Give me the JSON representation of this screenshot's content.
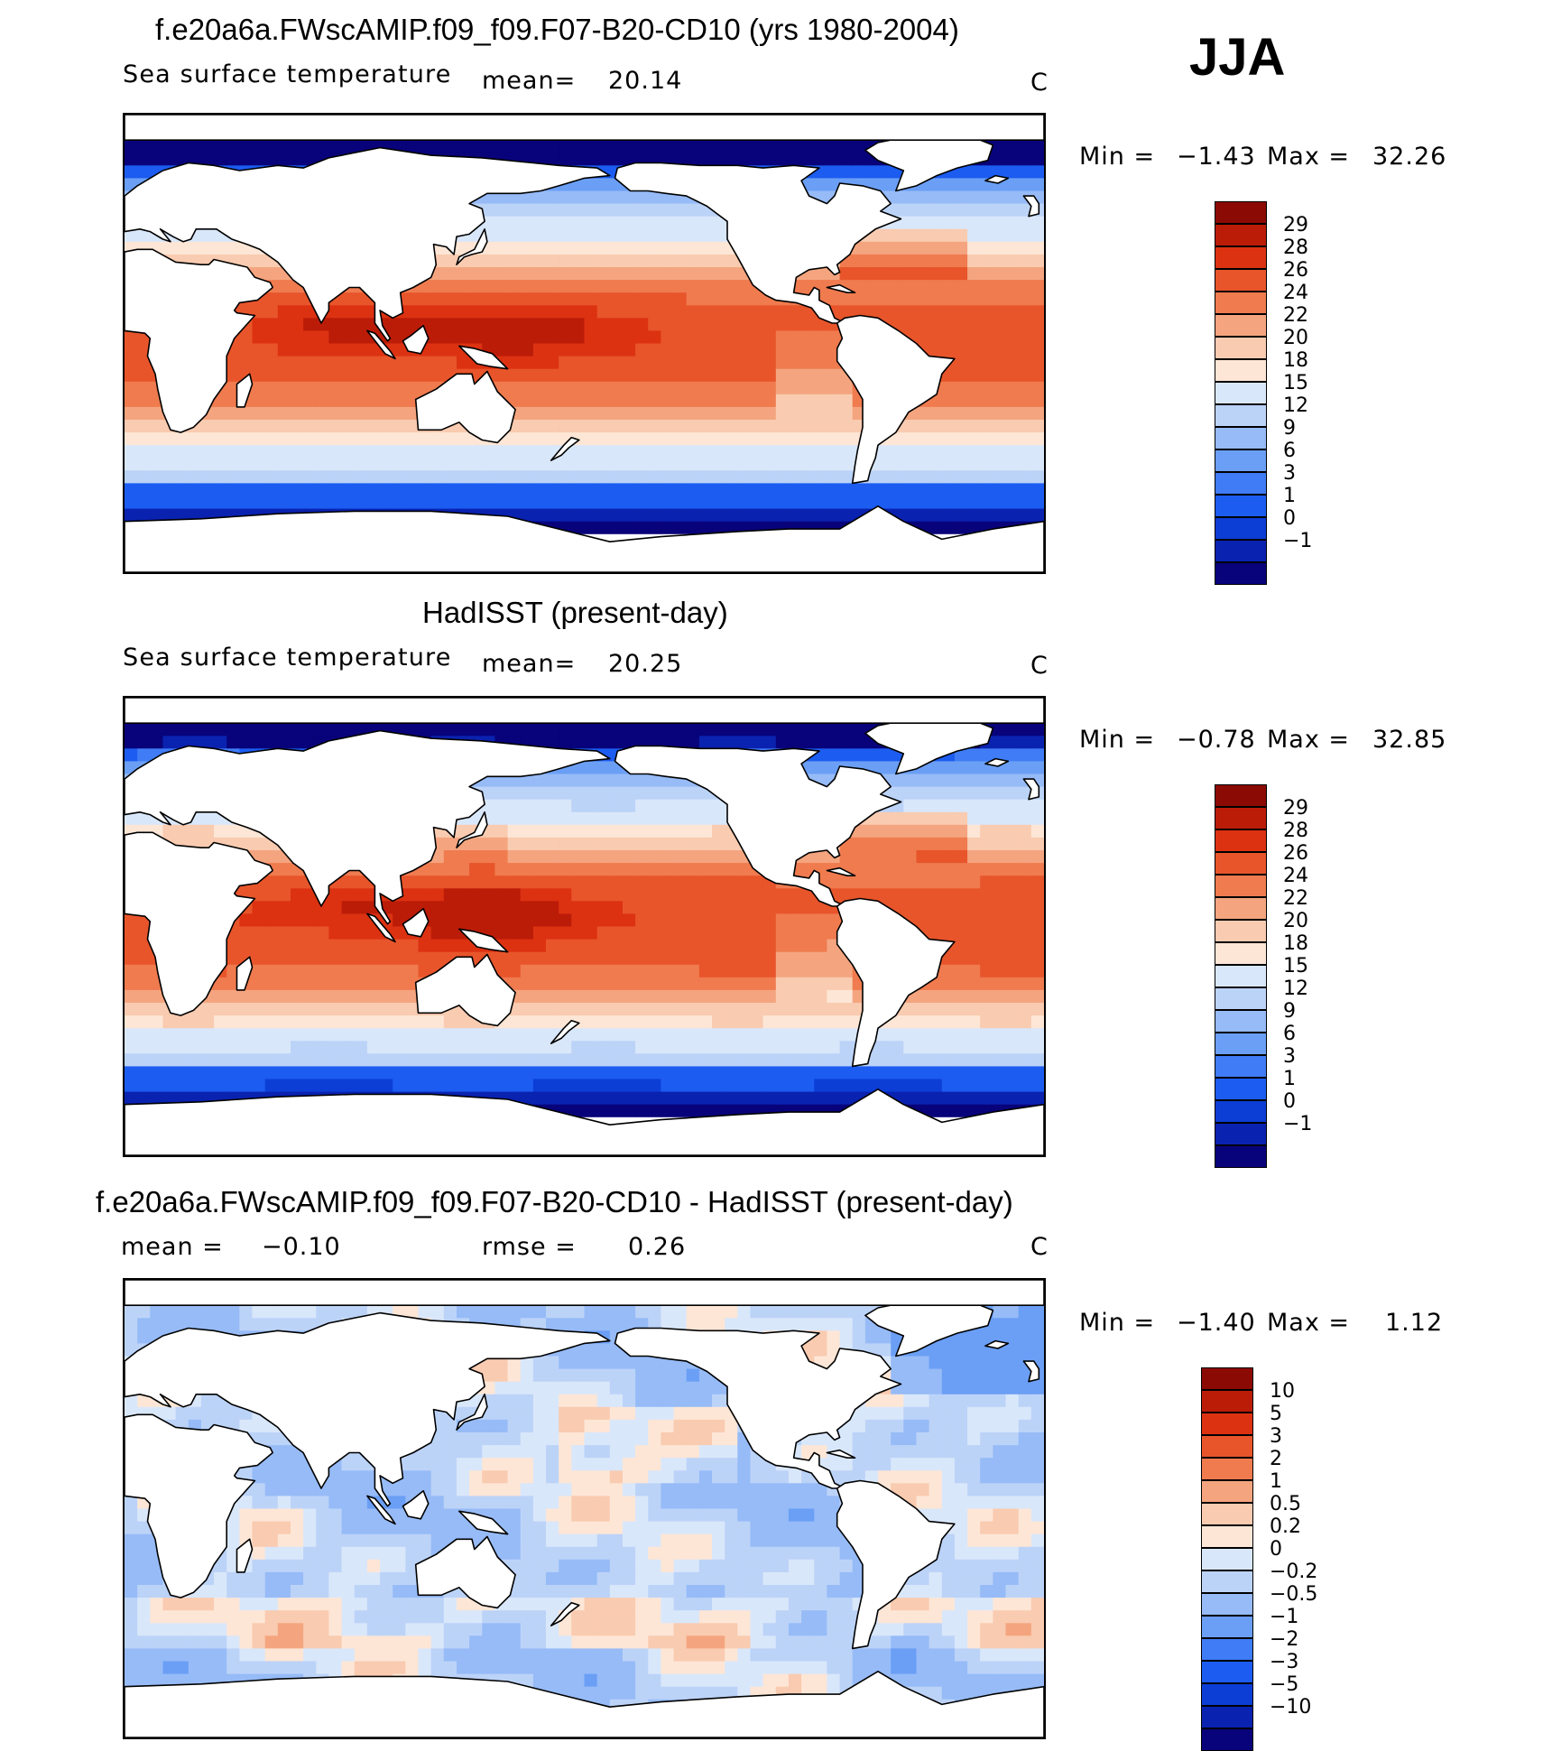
{
  "season": "JJA",
  "colors": {
    "sst_levels": [
      "#08037a",
      "#0a22b0",
      "#0c3ed6",
      "#1c5cf0",
      "#3f7cf5",
      "#6b9ff5",
      "#96bbf7",
      "#bcd3f8",
      "#d9e7fa",
      "#fde6d6",
      "#f9cbb0",
      "#f4a57f",
      "#ef7b4f",
      "#e8552b",
      "#dc3212",
      "#bb1c08",
      "#8c0a04"
    ],
    "diff_levels": [
      "#08037a",
      "#0a22b0",
      "#0c3ed6",
      "#1c5cf0",
      "#3f7cf5",
      "#6b9ff5",
      "#96bbf7",
      "#bcd3f8",
      "#d9e7fa",
      "#fde6d6",
      "#f9cbb0",
      "#f4a57f",
      "#ef7b4f",
      "#e8552b",
      "#dc3212",
      "#bb1c08",
      "#8c0a04"
    ]
  },
  "panels": [
    {
      "title": "f.e20a6a.FWscAMIP.f09_f09.F07-B20-CD10 (yrs 1980-2004)",
      "variable": "Sea surface temperature",
      "mean_label": "mean=",
      "mean_value": "20.14",
      "units": "C",
      "min_label": "Min =",
      "min_value": "−1.43",
      "max_label": "Max =",
      "max_value": "32.26",
      "colorbar_labels": [
        "29",
        "28",
        "26",
        "24",
        "22",
        "20",
        "18",
        "15",
        "12",
        "9",
        "6",
        "3",
        "1",
        "0",
        "−1"
      ],
      "field": "sst"
    },
    {
      "title": "HadISST (present-day)",
      "variable": "Sea surface temperature",
      "mean_label": "mean=",
      "mean_value": "20.25",
      "units": "C",
      "min_label": "Min =",
      "min_value": "−0.78",
      "max_label": "Max =",
      "max_value": "32.85",
      "colorbar_labels": [
        "29",
        "28",
        "26",
        "24",
        "22",
        "20",
        "18",
        "15",
        "12",
        "9",
        "6",
        "3",
        "1",
        "0",
        "−1"
      ],
      "field": "sst"
    },
    {
      "title": "f.e20a6a.FWscAMIP.f09_f09.F07-B20-CD10 - HadISST (present-day)",
      "mean_label": "mean =",
      "mean_value": "−0.10",
      "rmse_label": "rmse =",
      "rmse_value": "0.26",
      "units": "C",
      "min_label": "Min =",
      "min_value": "−1.40",
      "max_label": "Max =",
      "max_value": "1.12",
      "colorbar_labels": [
        "10",
        "5",
        "3",
        "2",
        "1",
        "0.5",
        "0.2",
        "0",
        "−0.2",
        "−0.5",
        "−1",
        "−2",
        "−3",
        "−5",
        "−10"
      ],
      "field": "diff"
    }
  ]
}
